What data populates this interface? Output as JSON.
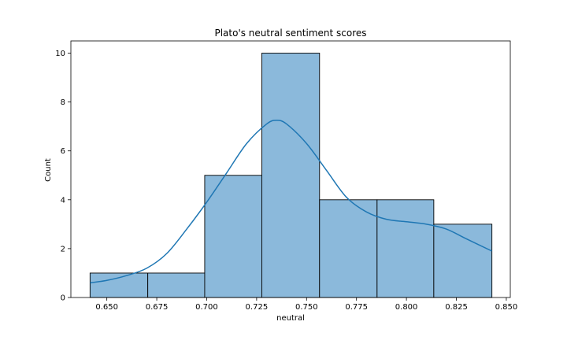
{
  "chart_data": {
    "type": "bar",
    "title": "Plato's neutral sentiment scores",
    "xlabel": "neutral",
    "ylabel": "Count",
    "xlim": [
      0.632,
      0.852
    ],
    "ylim": [
      0,
      10.5
    ],
    "x_ticks": [
      0.65,
      0.675,
      0.7,
      0.725,
      0.75,
      0.775,
      0.8,
      0.825,
      0.85
    ],
    "x_tick_labels": [
      "0.650",
      "0.675",
      "0.700",
      "0.725",
      "0.750",
      "0.775",
      "0.800",
      "0.825",
      "0.850"
    ],
    "y_ticks": [
      0,
      2,
      4,
      6,
      8,
      10
    ],
    "y_tick_labels": [
      "0",
      "2",
      "4",
      "6",
      "8",
      "10"
    ],
    "bins": [
      {
        "x0": 0.6416,
        "x1": 0.6705,
        "count": 1
      },
      {
        "x0": 0.6705,
        "x1": 0.699,
        "count": 1
      },
      {
        "x0": 0.699,
        "x1": 0.7276,
        "count": 5
      },
      {
        "x0": 0.7276,
        "x1": 0.7565,
        "count": 10
      },
      {
        "x0": 0.7565,
        "x1": 0.7853,
        "count": 4
      },
      {
        "x0": 0.7853,
        "x1": 0.8137,
        "count": 4
      },
      {
        "x0": 0.8137,
        "x1": 0.8428,
        "count": 3
      }
    ],
    "kde": {
      "x": [
        0.6416,
        0.65,
        0.66,
        0.67,
        0.68,
        0.69,
        0.7,
        0.71,
        0.72,
        0.73,
        0.735,
        0.74,
        0.75,
        0.76,
        0.77,
        0.78,
        0.79,
        0.8,
        0.81,
        0.82,
        0.83,
        0.8428
      ],
      "y": [
        0.6,
        0.7,
        0.9,
        1.2,
        1.8,
        2.8,
        3.9,
        5.1,
        6.3,
        7.1,
        7.25,
        7.1,
        6.3,
        5.2,
        4.1,
        3.5,
        3.2,
        3.1,
        3.0,
        2.8,
        2.4,
        1.9
      ]
    },
    "colors": {
      "bar_fill": "#8bb9db",
      "bar_edge": "#000000",
      "kde_line": "#1f77b4"
    },
    "grid": false,
    "legend": "none"
  }
}
